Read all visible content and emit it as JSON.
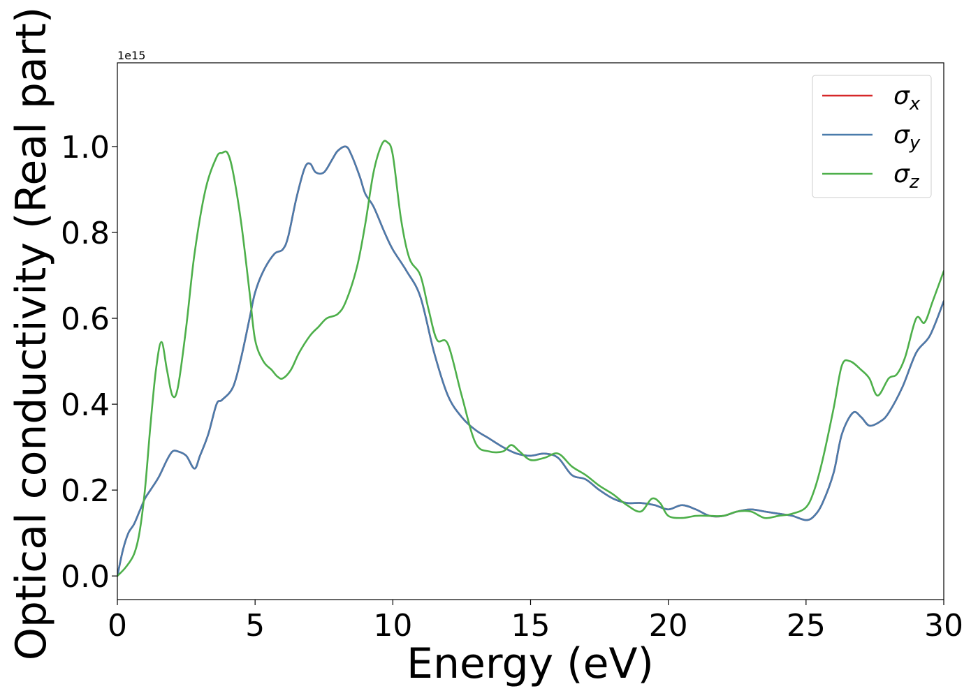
{
  "chart_data": {
    "type": "line",
    "xlabel": "Energy (eV)",
    "ylabel": "Optical conductivity (Real part)",
    "offset_text": "1e15",
    "xlim": [
      0,
      30
    ],
    "ylim": [
      -0.055,
      1.195
    ],
    "x_ticks": [
      0,
      5,
      10,
      15,
      20,
      25,
      30
    ],
    "y_ticks": [
      0.0,
      0.2,
      0.4,
      0.6,
      0.8,
      1.0
    ],
    "y_tick_labels": [
      "0.0",
      "0.2",
      "0.4",
      "0.6",
      "0.8",
      "1.0"
    ],
    "legend_position": "top-right",
    "grid": false,
    "series": [
      {
        "name": "σx",
        "legend_symbol": "σ",
        "legend_sub": "x",
        "color": "#d62728",
        "x": [
          0,
          0.2,
          0.4,
          0.6,
          0.8,
          1.0,
          1.2,
          1.5,
          1.8,
          2.0,
          2.2,
          2.5,
          2.8,
          3.0,
          3.3,
          3.6,
          3.8,
          4.2,
          4.5,
          4.8,
          5.0,
          5.3,
          5.7,
          6.0,
          6.2,
          6.5,
          6.8,
          7.0,
          7.2,
          7.5,
          7.8,
          8.0,
          8.3,
          8.5,
          8.8,
          9.0,
          9.3,
          9.7,
          10.0,
          10.5,
          11.0,
          11.5,
          12.0,
          12.5,
          13.0,
          13.5,
          14.0,
          14.5,
          15.0,
          15.5,
          16.0,
          16.5,
          17.0,
          17.5,
          18.0,
          18.5,
          19.0,
          19.5,
          20.0,
          20.5,
          21.0,
          21.5,
          22.0,
          22.5,
          23.0,
          23.5,
          24.0,
          24.5,
          25.0,
          25.3,
          25.6,
          26.0,
          26.3,
          26.7,
          27.0,
          27.3,
          27.7,
          28.0,
          28.5,
          29.0,
          29.5,
          30.0
        ],
        "y": [
          0.0,
          0.06,
          0.1,
          0.12,
          0.15,
          0.18,
          0.2,
          0.23,
          0.27,
          0.29,
          0.29,
          0.28,
          0.25,
          0.28,
          0.33,
          0.4,
          0.41,
          0.44,
          0.51,
          0.6,
          0.66,
          0.71,
          0.75,
          0.76,
          0.79,
          0.88,
          0.95,
          0.96,
          0.94,
          0.94,
          0.97,
          0.99,
          1.0,
          0.98,
          0.93,
          0.89,
          0.86,
          0.8,
          0.76,
          0.71,
          0.65,
          0.52,
          0.42,
          0.37,
          0.34,
          0.32,
          0.3,
          0.285,
          0.28,
          0.285,
          0.275,
          0.235,
          0.225,
          0.2,
          0.18,
          0.17,
          0.17,
          0.165,
          0.155,
          0.165,
          0.155,
          0.14,
          0.14,
          0.15,
          0.155,
          0.15,
          0.145,
          0.14,
          0.13,
          0.14,
          0.17,
          0.24,
          0.33,
          0.38,
          0.37,
          0.35,
          0.36,
          0.38,
          0.44,
          0.52,
          0.56,
          0.64
        ]
      },
      {
        "name": "σy",
        "legend_symbol": "σ",
        "legend_sub": "y",
        "color": "#4a7bab",
        "x": [
          0,
          0.2,
          0.4,
          0.6,
          0.8,
          1.0,
          1.2,
          1.5,
          1.8,
          2.0,
          2.2,
          2.5,
          2.8,
          3.0,
          3.3,
          3.6,
          3.8,
          4.2,
          4.5,
          4.8,
          5.0,
          5.3,
          5.7,
          6.0,
          6.2,
          6.5,
          6.8,
          7.0,
          7.2,
          7.5,
          7.8,
          8.0,
          8.3,
          8.5,
          8.8,
          9.0,
          9.3,
          9.7,
          10.0,
          10.5,
          11.0,
          11.5,
          12.0,
          12.5,
          13.0,
          13.5,
          14.0,
          14.5,
          15.0,
          15.5,
          16.0,
          16.5,
          17.0,
          17.5,
          18.0,
          18.5,
          19.0,
          19.5,
          20.0,
          20.5,
          21.0,
          21.5,
          22.0,
          22.5,
          23.0,
          23.5,
          24.0,
          24.5,
          25.0,
          25.3,
          25.6,
          26.0,
          26.3,
          26.7,
          27.0,
          27.3,
          27.7,
          28.0,
          28.5,
          29.0,
          29.5,
          30.0
        ],
        "y": [
          0.0,
          0.06,
          0.1,
          0.12,
          0.15,
          0.18,
          0.2,
          0.23,
          0.27,
          0.29,
          0.29,
          0.28,
          0.25,
          0.28,
          0.33,
          0.4,
          0.41,
          0.44,
          0.51,
          0.6,
          0.66,
          0.71,
          0.75,
          0.76,
          0.79,
          0.88,
          0.95,
          0.96,
          0.94,
          0.94,
          0.97,
          0.99,
          1.0,
          0.98,
          0.93,
          0.89,
          0.86,
          0.8,
          0.76,
          0.71,
          0.65,
          0.52,
          0.42,
          0.37,
          0.34,
          0.32,
          0.3,
          0.285,
          0.28,
          0.285,
          0.275,
          0.235,
          0.225,
          0.2,
          0.18,
          0.17,
          0.17,
          0.165,
          0.155,
          0.165,
          0.155,
          0.14,
          0.14,
          0.15,
          0.155,
          0.15,
          0.145,
          0.14,
          0.13,
          0.14,
          0.17,
          0.24,
          0.33,
          0.38,
          0.37,
          0.35,
          0.36,
          0.38,
          0.44,
          0.52,
          0.56,
          0.64
        ]
      },
      {
        "name": "σz",
        "legend_symbol": "σ",
        "legend_sub": "z",
        "color": "#4daf4a",
        "x": [
          0,
          0.3,
          0.6,
          0.8,
          1.0,
          1.2,
          1.4,
          1.6,
          1.8,
          2.0,
          2.2,
          2.5,
          2.8,
          3.2,
          3.6,
          3.8,
          4.0,
          4.2,
          4.5,
          4.8,
          5.0,
          5.3,
          5.6,
          5.8,
          6.0,
          6.3,
          6.6,
          7.0,
          7.3,
          7.6,
          8.0,
          8.3,
          8.7,
          9.0,
          9.3,
          9.6,
          9.8,
          10.0,
          10.3,
          10.6,
          11.0,
          11.3,
          11.6,
          12.0,
          12.5,
          13.0,
          13.5,
          14.0,
          14.3,
          14.6,
          15.0,
          15.5,
          16.0,
          16.5,
          17.0,
          17.5,
          18.0,
          18.5,
          19.0,
          19.4,
          19.7,
          20.0,
          20.5,
          21.0,
          21.5,
          22.0,
          22.5,
          23.0,
          23.5,
          24.0,
          24.5,
          25.0,
          25.3,
          25.6,
          26.0,
          26.3,
          26.6,
          27.0,
          27.3,
          27.6,
          28.0,
          28.3,
          28.6,
          29.0,
          29.3,
          29.6,
          30.0
        ],
        "y": [
          0.0,
          0.02,
          0.05,
          0.1,
          0.2,
          0.35,
          0.48,
          0.545,
          0.48,
          0.42,
          0.44,
          0.58,
          0.75,
          0.9,
          0.975,
          0.985,
          0.985,
          0.94,
          0.82,
          0.66,
          0.55,
          0.5,
          0.48,
          0.465,
          0.46,
          0.48,
          0.52,
          0.56,
          0.58,
          0.6,
          0.61,
          0.64,
          0.72,
          0.82,
          0.94,
          1.005,
          1.01,
          0.98,
          0.83,
          0.74,
          0.7,
          0.62,
          0.55,
          0.54,
          0.42,
          0.31,
          0.29,
          0.29,
          0.305,
          0.29,
          0.27,
          0.275,
          0.285,
          0.255,
          0.235,
          0.21,
          0.19,
          0.165,
          0.15,
          0.18,
          0.17,
          0.14,
          0.135,
          0.14,
          0.14,
          0.14,
          0.15,
          0.15,
          0.135,
          0.14,
          0.145,
          0.16,
          0.2,
          0.27,
          0.39,
          0.49,
          0.5,
          0.48,
          0.46,
          0.42,
          0.46,
          0.47,
          0.51,
          0.6,
          0.59,
          0.64,
          0.71
        ]
      }
    ]
  }
}
